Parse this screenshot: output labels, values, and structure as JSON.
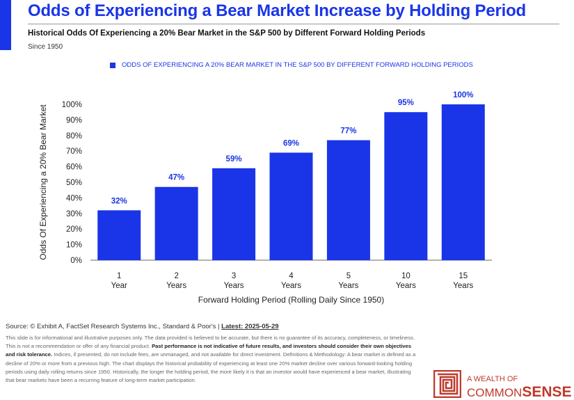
{
  "header": {
    "title": "Odds of Experiencing a Bear Market Increase by Holding Period",
    "subtitle": "Historical Odds Of Experiencing a 20% Bear Market in the S&P 500 by Different Forward Holding Periods",
    "since": "Since 1950"
  },
  "colors": {
    "accent": "#1a35e8",
    "brand": "#c0392b"
  },
  "chart_data": {
    "type": "bar",
    "legend": "ODDS OF EXPERIENCING A 20% BEAR MARKET IN THE S&P 500 BY DIFFERENT FORWARD HOLDING PERIODS",
    "legend_position": "top",
    "categories": [
      [
        "1",
        "Year"
      ],
      [
        "2",
        "Years"
      ],
      [
        "3",
        "Years"
      ],
      [
        "4",
        "Years"
      ],
      [
        "5",
        "Years"
      ],
      [
        "10",
        "Years"
      ],
      [
        "15",
        "Years"
      ]
    ],
    "values": [
      32,
      47,
      59,
      69,
      77,
      95,
      100
    ],
    "data_labels": [
      "32%",
      "47%",
      "59%",
      "69%",
      "77%",
      "95%",
      "100%"
    ],
    "xlabel": "Forward Holding Period (Rolling Daily Since 1950)",
    "ylabel": "Odds Of Experiencing a 20% Bear Market",
    "ylim": [
      0,
      100
    ],
    "yticks": [
      "0%",
      "10%",
      "20%",
      "30%",
      "40%",
      "50%",
      "60%",
      "70%",
      "80%",
      "90%",
      "100%"
    ],
    "grid": false
  },
  "footer": {
    "source_prefix": "Source: © Exhibit A, FactSet Research Systems Inc., Standard & Poor's | ",
    "latest": "Latest: 2025-05-29",
    "disclaimer_1": "This slide is for informational and illustrative purposes only. The data provided is believed to be accurate, but there is no guarantee of its accuracy, completeness, or timeliness. This is not a recommendation or offer of any financial product. ",
    "disclaimer_bold": "Past performance is not indicative of future results, and investors should consider their own objectives and risk tolerance.",
    "disclaimer_2": " Indices, if presented, do not include fees, are unmanaged, and not available for direct investment. Definitions & Methodology: A bear market is defined as a decline of 20% or more from a previous high. The chart displays the historical probability of experiencing at least one 20% market decline over various forward-looking holding periods using daily rolling returns since 1950. Historically, the longer the holding period, the more likely it is that an investor would have experienced a bear market, illustrating that bear markets have been a recurring feature of long-term market participation."
  },
  "logo": {
    "small": "A WEALTH OF",
    "common": "COMMON",
    "sense": "SENSE"
  }
}
